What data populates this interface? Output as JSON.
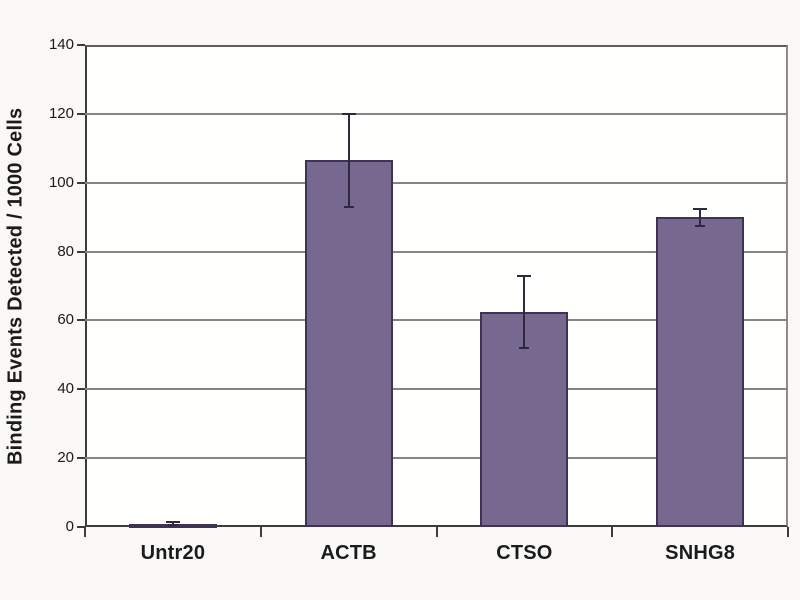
{
  "chart_data": {
    "type": "bar",
    "title": "",
    "categories": [
      "Untr20",
      "ACTB",
      "CTSO",
      "SNHG8"
    ],
    "values": [
      1,
      106.5,
      62.5,
      90
    ],
    "error_bars": [
      0.5,
      13.5,
      10.5,
      2.5
    ],
    "xlabel": "",
    "ylabel": "Binding Events Detected / 1000 Cells",
    "ylim": [
      0,
      140
    ],
    "yticks": [
      0,
      20,
      40,
      60,
      80,
      100,
      120,
      140
    ],
    "grid": true,
    "legend": false,
    "bar_color": "#76688e",
    "bar_border_color": "#3e3355",
    "error_bar_color": "#2f2840",
    "gridline_color": "#858585",
    "axis_color": "#3c3c3c",
    "plot_background": "#fffffe",
    "page_background": "#faf9f7"
  }
}
